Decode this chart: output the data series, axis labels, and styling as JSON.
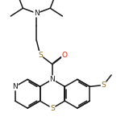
{
  "bg_color": "#ffffff",
  "bond_color": "#1a1a1a",
  "atom_colors": {
    "N": "#1a1a1a",
    "S": "#8b6914",
    "O": "#cc2200"
  },
  "line_width": 1.1,
  "font_size": 6.5
}
